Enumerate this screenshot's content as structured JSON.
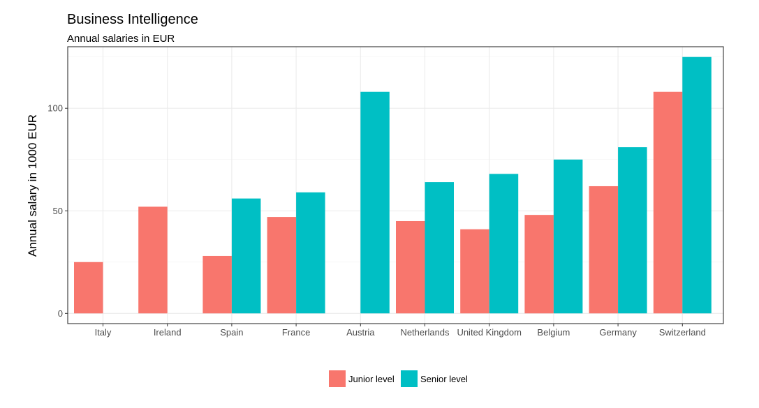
{
  "chart_data": {
    "type": "bar",
    "title": "Business Intelligence",
    "subtitle": "Annual salaries in EUR",
    "xlabel": "",
    "ylabel": "Annual salary in 1000 EUR",
    "ylim": [
      -5,
      130
    ],
    "yticks": [
      0,
      50,
      100
    ],
    "categories": [
      "Italy",
      "Ireland",
      "Spain",
      "France",
      "Austria",
      "Netherlands",
      "United Kingdom",
      "Belgium",
      "Germany",
      "Switzerland"
    ],
    "series": [
      {
        "name": "Junior level",
        "color": "#F8766D",
        "values": [
          25,
          52,
          28,
          47,
          null,
          45,
          41,
          48,
          62,
          108
        ]
      },
      {
        "name": "Senior level",
        "color": "#00BFC4",
        "values": [
          null,
          null,
          56,
          59,
          108,
          64,
          68,
          75,
          81,
          125
        ]
      }
    ],
    "grid": true,
    "legend_position": "bottom"
  }
}
